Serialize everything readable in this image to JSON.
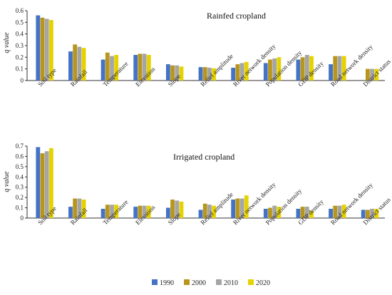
{
  "chart_data": [
    {
      "type": "bar",
      "title": "Rainfed cropland",
      "ylabel": "q value",
      "ylim": [
        0,
        0.6
      ],
      "yticks": [
        0,
        0.1,
        0.2,
        0.3,
        0.4,
        0.5,
        0.6
      ],
      "categories": [
        "Soil type",
        "Rainfall",
        "Temperature",
        "Elevation",
        "Slope",
        "Relief amplitude",
        "River network density",
        "Population density",
        "GDP density",
        "Road network density",
        "District status"
      ],
      "series": [
        {
          "name": "1990",
          "color": "#4472c4",
          "values": [
            0.56,
            0.25,
            0.18,
            0.22,
            0.14,
            0.115,
            0.11,
            0.15,
            0.18,
            0.14,
            null
          ]
        },
        {
          "name": "2000",
          "color": "#b8961e",
          "values": [
            0.54,
            0.31,
            0.24,
            0.23,
            0.13,
            0.115,
            0.14,
            0.18,
            0.2,
            0.21,
            0.1
          ]
        },
        {
          "name": "2010",
          "color": "#a5a5a5",
          "values": [
            0.53,
            0.29,
            0.21,
            0.23,
            0.13,
            0.11,
            0.15,
            0.19,
            0.22,
            0.21,
            0.1
          ]
        },
        {
          "name": "2020",
          "color": "#e6d200",
          "values": [
            0.52,
            0.28,
            0.22,
            0.22,
            0.12,
            0.105,
            0.16,
            0.2,
            0.21,
            0.21,
            0.1
          ]
        }
      ]
    },
    {
      "type": "bar",
      "title": "Irrigated cropland",
      "ylabel": "q value",
      "ylim": [
        0,
        0.7
      ],
      "yticks": [
        0,
        0.1,
        0.2,
        0.3,
        0.4,
        0.5,
        0.6,
        0.7
      ],
      "categories": [
        "Soil type",
        "Rainfall",
        "Temperature",
        "Elevation",
        "Slope",
        "Relief amplitude",
        "River network density",
        "Population density",
        "GDP density",
        "Road network density",
        "District status"
      ],
      "series": [
        {
          "name": "1990",
          "color": "#4472c4",
          "values": [
            0.69,
            0.11,
            0.09,
            0.11,
            0.1,
            0.08,
            0.18,
            0.09,
            0.09,
            0.09,
            0.08
          ]
        },
        {
          "name": "2000",
          "color": "#b8961e",
          "values": [
            0.63,
            0.19,
            0.13,
            0.12,
            0.18,
            0.14,
            0.19,
            0.1,
            0.11,
            0.12,
            0.08
          ]
        },
        {
          "name": "2010",
          "color": "#a5a5a5",
          "values": [
            0.65,
            0.19,
            0.13,
            0.12,
            0.17,
            0.13,
            0.19,
            0.12,
            0.11,
            0.12,
            0.09
          ]
        },
        {
          "name": "2020",
          "color": "#e6d200",
          "values": [
            0.68,
            0.18,
            0.13,
            0.12,
            0.16,
            0.12,
            0.22,
            0.11,
            0.07,
            0.13,
            0.09
          ]
        }
      ]
    }
  ],
  "legend": [
    {
      "label": "1990",
      "color": "#4472c4"
    },
    {
      "label": "2000",
      "color": "#b8961e"
    },
    {
      "label": "2010",
      "color": "#a5a5a5"
    },
    {
      "label": "2020",
      "color": "#e6d200"
    }
  ]
}
